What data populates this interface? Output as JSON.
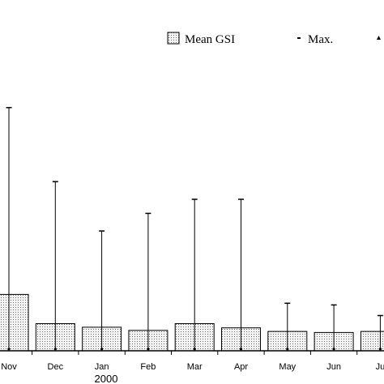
{
  "chart_data": {
    "type": "bar",
    "categories": [
      "Nov",
      "Dec",
      "Jan",
      "Feb",
      "Mar",
      "Apr",
      "May",
      "Jun",
      "Ju"
    ],
    "year_label": "2000",
    "series": [
      {
        "name": "Mean GSI",
        "values": [
          1.6,
          0.77,
          0.67,
          0.58,
          0.77,
          0.65,
          0.55,
          0.52,
          0.55
        ]
      },
      {
        "name": "Max.",
        "values": [
          6.9,
          4.8,
          3.4,
          3.9,
          4.3,
          4.3,
          1.35,
          1.3,
          1.0
        ]
      },
      {
        "name": "",
        "values": [
          0.05,
          0.05,
          0.05,
          0.05,
          0.05,
          0.05,
          0.05,
          0.05,
          0.05
        ]
      }
    ],
    "legend": {
      "mean_label": "Mean GSI",
      "max_label": "Max.",
      "placement": "top-right"
    },
    "title": "",
    "xlabel": "",
    "ylabel": "",
    "ylim": [
      0,
      8.6
    ],
    "grid": false,
    "colors": {
      "bar_fill": "#f4f4f4",
      "stroke": "#000000",
      "dots": "#6f6f6f"
    }
  }
}
